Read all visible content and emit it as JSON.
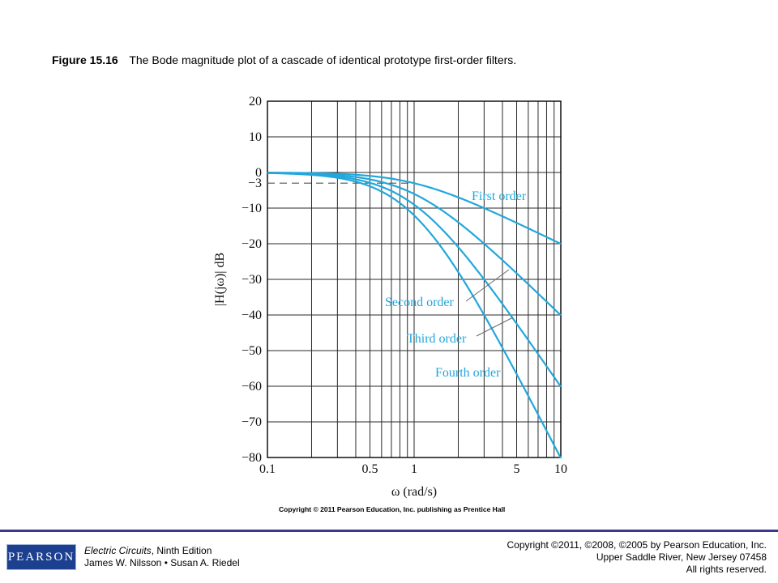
{
  "caption": {
    "figure_label": "Figure 15.16",
    "text": "The Bode magnitude plot of a cascade of identical prototype first-order filters."
  },
  "chart_data": {
    "type": "line",
    "xlabel": "ω (rad/s)",
    "ylabel": "|H(jω)| dB",
    "x_scale": "log",
    "xlim": [
      0.1,
      10
    ],
    "ylim": [
      -80,
      20
    ],
    "x_ticks": [
      {
        "value": 0.1,
        "label": "0.1"
      },
      {
        "value": 0.5,
        "label": "0.5"
      },
      {
        "value": 1,
        "label": "1"
      },
      {
        "value": 5,
        "label": "5"
      },
      {
        "value": 10,
        "label": "10"
      }
    ],
    "y_ticks": [
      {
        "value": 20,
        "label": "20"
      },
      {
        "value": 10,
        "label": "10"
      },
      {
        "value": 0,
        "label": "0"
      },
      {
        "value": -3,
        "label": "−3"
      },
      {
        "value": -10,
        "label": "−10"
      },
      {
        "value": -20,
        "label": "−20"
      },
      {
        "value": -30,
        "label": "−30"
      },
      {
        "value": -40,
        "label": "−40"
      },
      {
        "value": -50,
        "label": "−50"
      },
      {
        "value": -60,
        "label": "−60"
      },
      {
        "value": -70,
        "label": "−70"
      },
      {
        "value": -80,
        "label": "−80"
      }
    ],
    "grid": true,
    "reference_line": {
      "y": -3,
      "style": "dashed"
    },
    "line_color": "#22a7dc",
    "series": [
      {
        "name": "First order",
        "x": [
          0.1,
          0.2,
          0.3,
          0.5,
          0.7,
          1,
          1.5,
          2,
          3,
          5,
          7,
          10
        ],
        "y": [
          -0.04,
          -0.17,
          -0.37,
          -0.97,
          -1.73,
          -3.01,
          -5.12,
          -6.99,
          -10.0,
          -14.15,
          -17.03,
          -20.04
        ]
      },
      {
        "name": "Second order",
        "x": [
          0.1,
          0.2,
          0.3,
          0.5,
          0.7,
          1,
          1.5,
          2,
          3,
          5,
          7,
          10
        ],
        "y": [
          -0.09,
          -0.34,
          -0.75,
          -1.94,
          -3.45,
          -6.02,
          -10.23,
          -13.98,
          -20.0,
          -28.3,
          -34.06,
          -40.09
        ]
      },
      {
        "name": "Third order",
        "x": [
          0.1,
          0.2,
          0.3,
          0.5,
          0.7,
          1,
          1.5,
          2,
          3,
          5,
          7,
          10
        ],
        "y": [
          -0.13,
          -0.51,
          -1.12,
          -2.91,
          -5.18,
          -9.03,
          -15.35,
          -20.97,
          -30.0,
          -42.45,
          -51.09,
          -60.13
        ]
      },
      {
        "name": "Fourth order",
        "x": [
          0.1,
          0.2,
          0.3,
          0.5,
          0.7,
          1,
          1.5,
          2,
          3,
          5,
          7,
          10
        ],
        "y": [
          -0.17,
          -0.68,
          -1.49,
          -3.88,
          -6.9,
          -12.04,
          -20.46,
          -27.96,
          -40.0,
          -56.6,
          -68.12,
          -80.17
        ]
      }
    ],
    "series_labels": [
      {
        "series": "First order",
        "text": "First order"
      },
      {
        "series": "Second order",
        "text": "Second order"
      },
      {
        "series": "Third order",
        "text": "Third order"
      },
      {
        "series": "Fourth order",
        "text": "Fourth order"
      }
    ],
    "chart_copyright": "Copyright © 2011 Pearson Education, Inc. publishing as Prentice Hall"
  },
  "footer": {
    "logo_text": "PEARSON",
    "book_title": "Electric Circuits",
    "book_edition": ", Ninth Edition",
    "authors": "James W. Nilsson • Susan A. Riedel",
    "copyright_line1": "Copyright ©2011, ©2008, ©2005 by Pearson Education, Inc.",
    "copyright_line2": "Upper Saddle River, New Jersey 07458",
    "copyright_line3": "All rights reserved."
  }
}
